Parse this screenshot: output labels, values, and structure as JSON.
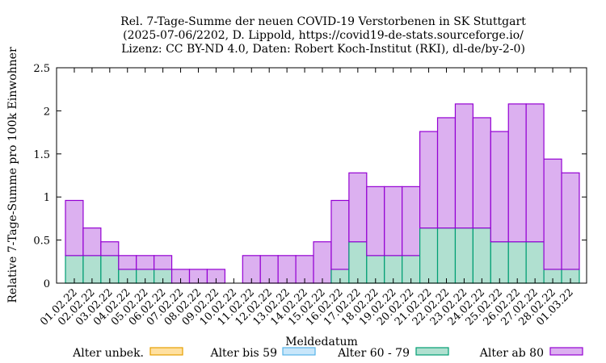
{
  "chart_data": {
    "type": "bar",
    "stacked": true,
    "title_lines": [
      "Rel. 7-Tage-Summe der neuen COVID-19 Verstorbenen in SK Stuttgart",
      "(2025-07-06/2202, D. Lippold, https://covid19-de-stats.sourceforge.io/",
      "Lizenz: CC BY-ND 4.0, Daten: Robert Koch-Institut (RKI), dl-de/by-2-0)"
    ],
    "xlabel": "Meldedatum",
    "ylabel": "Relative 7-Tage-Summe pro 100k Einwohner",
    "ylim": [
      0,
      2.5
    ],
    "yticks": [
      "0",
      "0.5",
      "1",
      "1.5",
      "2",
      "2.5"
    ],
    "grid": false,
    "legend_position": "bottom",
    "categories": [
      "01.02.22",
      "02.02.22",
      "03.02.22",
      "04.02.22",
      "05.02.22",
      "06.02.22",
      "07.02.22",
      "08.02.22",
      "09.02.22",
      "10.02.22",
      "11.02.22",
      "12.02.22",
      "13.02.22",
      "14.02.22",
      "15.02.22",
      "16.02.22",
      "17.02.22",
      "18.02.22",
      "19.02.22",
      "20.02.22",
      "21.02.22",
      "22.02.22",
      "23.02.22",
      "24.02.22",
      "25.02.22",
      "26.02.22",
      "27.02.22",
      "28.02.22",
      "01.03.22"
    ],
    "series": [
      {
        "name": "Alter unbek.",
        "fill": "#ffe0a0",
        "stroke": "#e69f00",
        "values": [
          0,
          0,
          0,
          0,
          0,
          0,
          0,
          0,
          0,
          0,
          0,
          0,
          0,
          0,
          0,
          0,
          0,
          0,
          0,
          0,
          0,
          0,
          0,
          0,
          0,
          0,
          0,
          0,
          0
        ]
      },
      {
        "name": "Alter bis 59",
        "fill": "#c8e6fa",
        "stroke": "#56b4e9",
        "values": [
          0,
          0,
          0,
          0,
          0,
          0,
          0,
          0,
          0,
          0,
          0,
          0,
          0,
          0,
          0,
          0,
          0,
          0,
          0,
          0,
          0,
          0,
          0,
          0,
          0,
          0,
          0,
          0,
          0
        ]
      },
      {
        "name": "Alter 60 - 79",
        "fill": "#b0e0d0",
        "stroke": "#009e73",
        "values": [
          0.32,
          0.32,
          0.32,
          0.16,
          0.16,
          0.16,
          0,
          0,
          0,
          0,
          0,
          0,
          0,
          0,
          0,
          0.16,
          0.48,
          0.32,
          0.32,
          0.32,
          0.64,
          0.64,
          0.64,
          0.64,
          0.48,
          0.48,
          0.48,
          0.16,
          0.16
        ]
      },
      {
        "name": "Alter ab 80",
        "fill": "#dcb0f0",
        "stroke": "#9400d3",
        "values": [
          0.64,
          0.32,
          0.16,
          0.16,
          0.16,
          0.16,
          0.16,
          0.16,
          0.16,
          0,
          0.32,
          0.32,
          0.32,
          0.32,
          0.48,
          0.8,
          0.8,
          0.8,
          0.8,
          0.8,
          1.12,
          1.28,
          1.44,
          1.28,
          1.28,
          1.6,
          1.6,
          1.28,
          1.12
        ]
      }
    ]
  }
}
